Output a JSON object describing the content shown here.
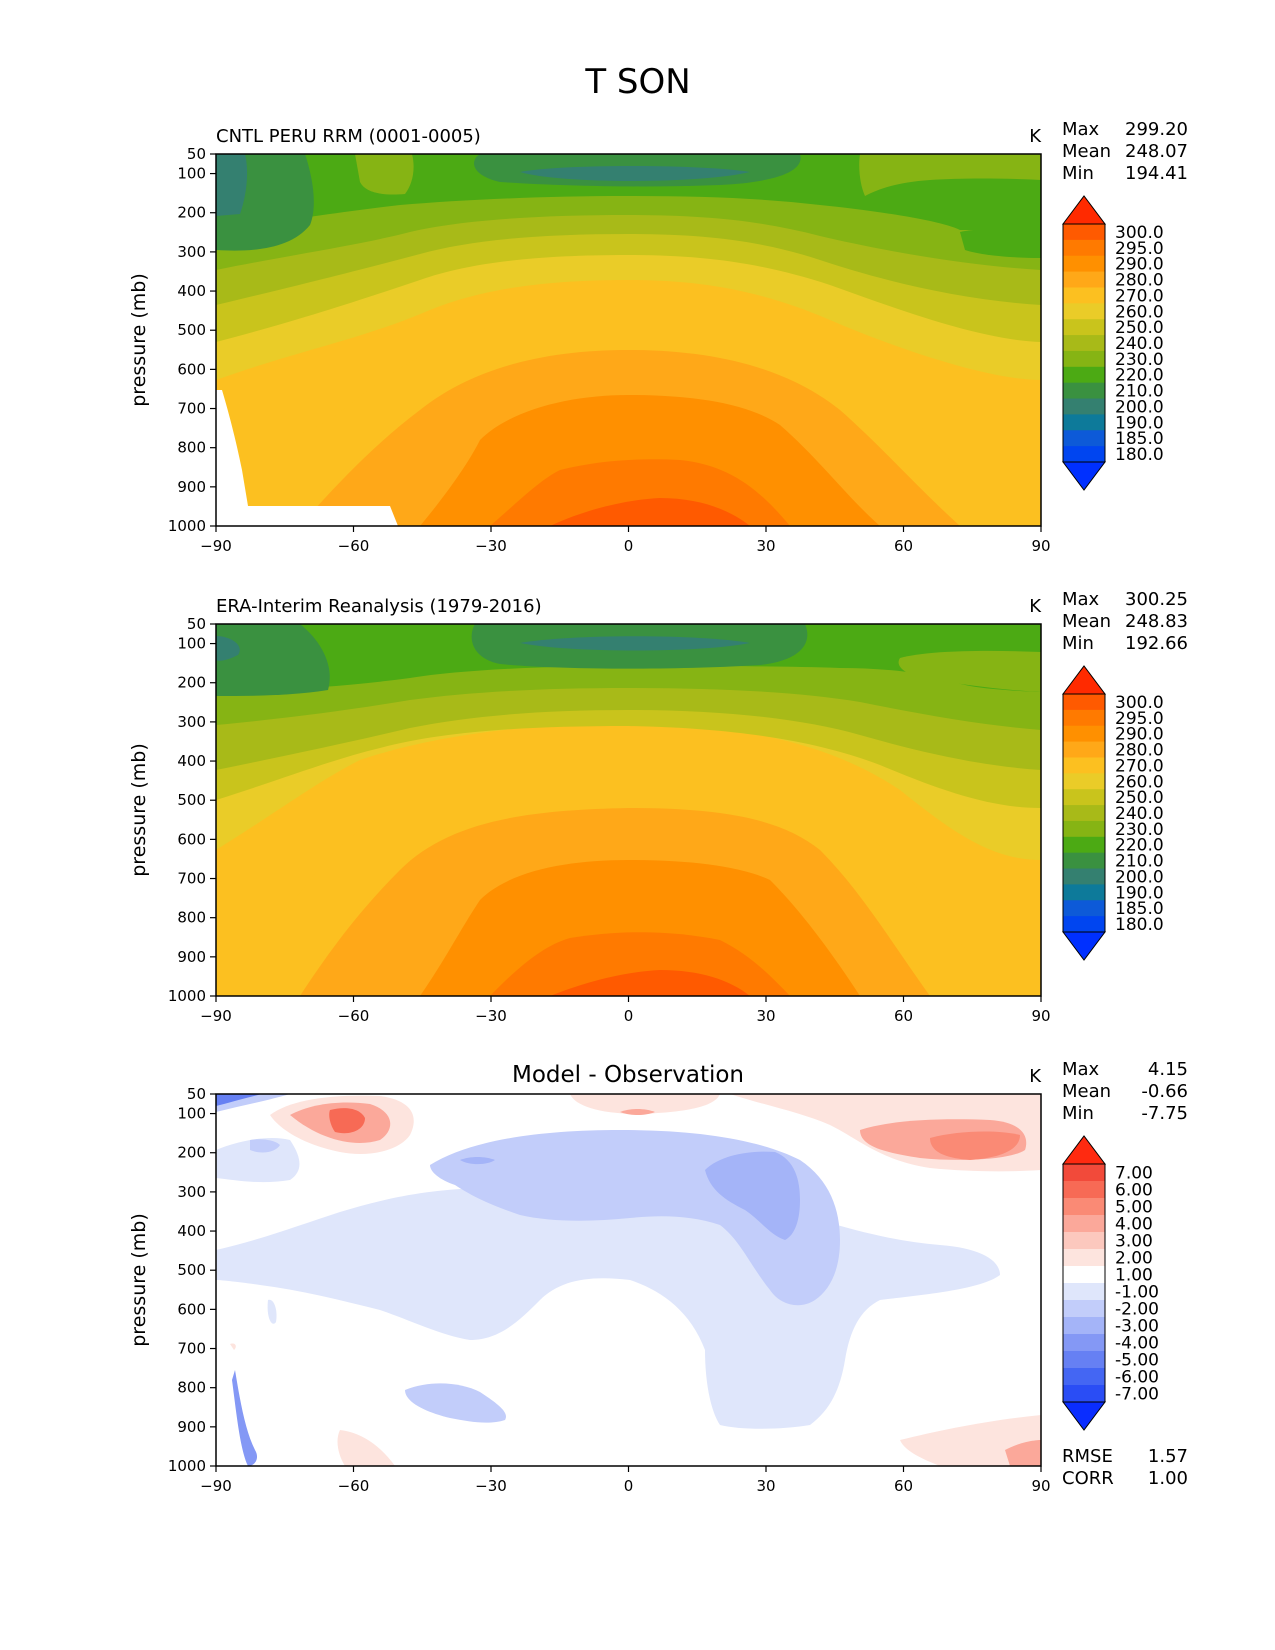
{
  "figure_title": "T SON",
  "chart_data": [
    {
      "type": "heatmap",
      "panel_title": "CNTL PERU RRM (0001-0005)",
      "units": "K",
      "stats": {
        "max_label": "Max",
        "max": "299.20",
        "mean_label": "Mean",
        "mean": "248.07",
        "min_label": "Min",
        "min": "194.41"
      },
      "xlabel": "",
      "ylabel": "pressure (mb)",
      "xticks": [
        "−90",
        "−60",
        "−30",
        "0",
        "30",
        "60",
        "90"
      ],
      "yticks": [
        "50",
        "100",
        "200",
        "300",
        "400",
        "500",
        "600",
        "700",
        "800",
        "900",
        "1000"
      ],
      "xlim": [
        -90,
        90
      ],
      "ylim": [
        1000,
        50
      ],
      "colorbar": {
        "labels": [
          "300.0",
          "295.0",
          "290.0",
          "280.0",
          "270.0",
          "260.0",
          "250.0",
          "240.0",
          "230.0",
          "220.0",
          "210.0",
          "200.0",
          "190.0",
          "185.0",
          "180.0"
        ],
        "colors": [
          "#ff2a00",
          "#ff5a00",
          "#ff7a00",
          "#ff9000",
          "#ffa818",
          "#fcc020",
          "#eacc28",
          "#c9c41c",
          "#a8ba18",
          "#86b414",
          "#4caa14",
          "#3a9140",
          "#348070",
          "#0d7a9a",
          "#0d5ad8",
          "#0045f0",
          "#0030ff"
        ]
      },
      "field": "model"
    },
    {
      "type": "heatmap",
      "panel_title": "ERA-Interim Reanalysis (1979-2016)",
      "units": "K",
      "stats": {
        "max_label": "Max",
        "max": "300.25",
        "mean_label": "Mean",
        "mean": "248.83",
        "min_label": "Min",
        "min": "192.66"
      },
      "xlabel": "",
      "ylabel": "pressure (mb)",
      "xticks": [
        "−90",
        "−60",
        "−30",
        "0",
        "30",
        "60",
        "90"
      ],
      "yticks": [
        "50",
        "100",
        "200",
        "300",
        "400",
        "500",
        "600",
        "700",
        "800",
        "900",
        "1000"
      ],
      "xlim": [
        -90,
        90
      ],
      "ylim": [
        1000,
        50
      ],
      "colorbar": {
        "labels": [
          "300.0",
          "295.0",
          "290.0",
          "280.0",
          "270.0",
          "260.0",
          "250.0",
          "240.0",
          "230.0",
          "220.0",
          "210.0",
          "200.0",
          "190.0",
          "185.0",
          "180.0"
        ],
        "colors": [
          "#ff2a00",
          "#ff5a00",
          "#ff7a00",
          "#ff9000",
          "#ffa818",
          "#fcc020",
          "#eacc28",
          "#c9c41c",
          "#a8ba18",
          "#86b414",
          "#4caa14",
          "#3a9140",
          "#348070",
          "#0d7a9a",
          "#0d5ad8",
          "#0045f0",
          "#0030ff"
        ]
      },
      "field": "obs"
    },
    {
      "type": "heatmap",
      "panel_title": "Model - Observation",
      "units": "K",
      "stats": {
        "max_label": "Max",
        "max": "4.15",
        "mean_label": "Mean",
        "mean": "-0.66",
        "min_label": "Min",
        "min": "-7.75",
        "rmse_label": "RMSE",
        "rmse": "1.57",
        "corr_label": "CORR",
        "corr": "1.00"
      },
      "xlabel": "",
      "ylabel": "pressure (mb)",
      "xticks": [
        "−90",
        "−60",
        "−30",
        "0",
        "30",
        "60",
        "90"
      ],
      "yticks": [
        "50",
        "100",
        "200",
        "300",
        "400",
        "500",
        "600",
        "700",
        "800",
        "900",
        "1000"
      ],
      "xlim": [
        -90,
        90
      ],
      "ylim": [
        1000,
        50
      ],
      "colorbar": {
        "labels": [
          "7.00",
          "6.00",
          "5.00",
          "4.00",
          "3.00",
          "2.00",
          "1.00",
          "-1.00",
          "-2.00",
          "-3.00",
          "-4.00",
          "-5.00",
          "-6.00",
          "-7.00"
        ],
        "colors": [
          "#ff2a10",
          "#f24a3a",
          "#f76a55",
          "#fa8a75",
          "#fba89a",
          "#fcc8be",
          "#fde4de",
          "#ffffff",
          "#dfe6fb",
          "#c2cdfa",
          "#a4b4f8",
          "#8498f5",
          "#6680f3",
          "#4466f3",
          "#2a4df5",
          "#0a2dff"
        ]
      },
      "field": "diff"
    }
  ]
}
